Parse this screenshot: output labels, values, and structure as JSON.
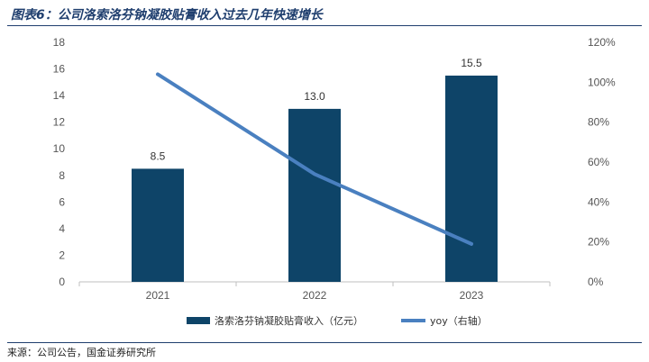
{
  "header": {
    "title": "图表6：公司洛索洛芬钠凝胶贴膏收入过去几年快速增长"
  },
  "footer": {
    "source": "来源：公司公告，国金证券研究所"
  },
  "colors": {
    "bar": "#0e4468",
    "line": "#4a80c0",
    "axis": "#bfbfbf",
    "title": "#1f3e6e"
  },
  "chart_data": {
    "type": "bar+line",
    "categories": [
      "2021",
      "2022",
      "2023"
    ],
    "series": [
      {
        "name": "洛索洛芬钠凝胶贴膏收入（亿元）",
        "type": "bar",
        "axis": "left",
        "values": [
          8.5,
          13.0,
          15.5
        ],
        "labels": [
          "8.5",
          "13.0",
          "15.5"
        ]
      },
      {
        "name": "yoy（右轴）",
        "type": "line",
        "axis": "right",
        "values": [
          104,
          54,
          19
        ]
      }
    ],
    "y_left": {
      "lim": [
        0,
        18
      ],
      "ticks": [
        "0",
        "2",
        "4",
        "6",
        "8",
        "10",
        "12",
        "14",
        "16",
        "18"
      ]
    },
    "y_right": {
      "lim": [
        0,
        120
      ],
      "ticks": [
        "0%",
        "20%",
        "40%",
        "60%",
        "80%",
        "100%",
        "120%"
      ]
    },
    "grid": false,
    "legend": "bottom"
  }
}
